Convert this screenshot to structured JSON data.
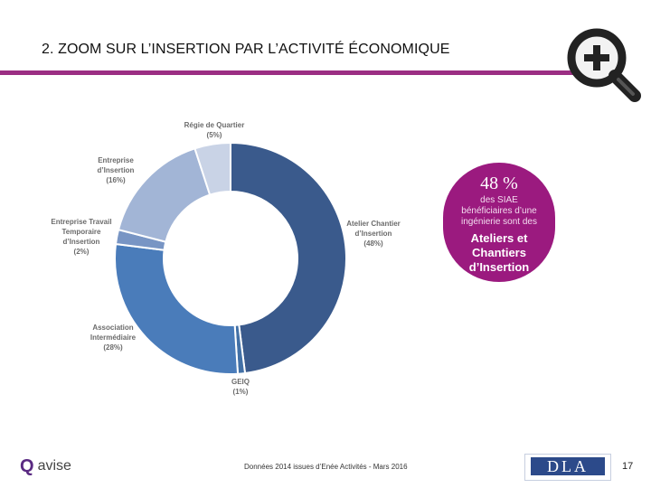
{
  "slide": {
    "title": "2. ZOOM SUR L’INSERTION PAR L’ACTIVITÉ ÉCONOMIQUE",
    "page_number": "17",
    "footer_source": "Données 2014 issues d’Enée Activités - Mars 2016",
    "logo_word": "avise",
    "logo_mark": "Q",
    "dla_label": "DLA",
    "zoom_icon": "magnifier-plus-icon"
  },
  "callout": {
    "big": "48 %",
    "small": "des SIAE bénéficiaires d’une ingénierie sont des",
    "bold": "Ateliers et Chantiers d’Insertion"
  },
  "colors": {
    "accent": "#9b2e83",
    "callout": "#9b1a7f"
  },
  "chart_data": {
    "type": "pie",
    "donut": true,
    "title": "",
    "slices": [
      {
        "name": "Atelier Chantier d’Insertion",
        "pct_label": "(48%)",
        "value": 48,
        "color": "#3a5a8c"
      },
      {
        "name": "GEIQ",
        "pct_label": "(1%)",
        "value": 1,
        "color": "#4270a6"
      },
      {
        "name": "Association Intermédiaire",
        "pct_label": "(28%)",
        "value": 28,
        "color": "#4a7cba"
      },
      {
        "name": "Entreprise Travail Temporaire d’Insertion",
        "pct_label": "(2%)",
        "value": 2,
        "color": "#7895c4"
      },
      {
        "name": "Entreprise d’Insertion",
        "pct_label": "(16%)",
        "value": 16,
        "color": "#a2b5d6"
      },
      {
        "name": "Régie de Quartier",
        "pct_label": "(5%)",
        "value": 5,
        "color": "#c9d3e6"
      }
    ],
    "label_lines": [
      [
        "Atelier Chantier",
        "d’Insertion",
        "(48%)"
      ],
      [
        "GEIQ",
        "(1%)"
      ],
      [
        "Association",
        "Intermédiaire",
        "(28%)"
      ],
      [
        "Entreprise Travail",
        "Temporaire",
        "d’Insertion",
        "(2%)"
      ],
      [
        "Entreprise",
        "d’Insertion",
        "(16%)"
      ],
      [
        "Régie de Quartier",
        "(5%)"
      ]
    ]
  }
}
